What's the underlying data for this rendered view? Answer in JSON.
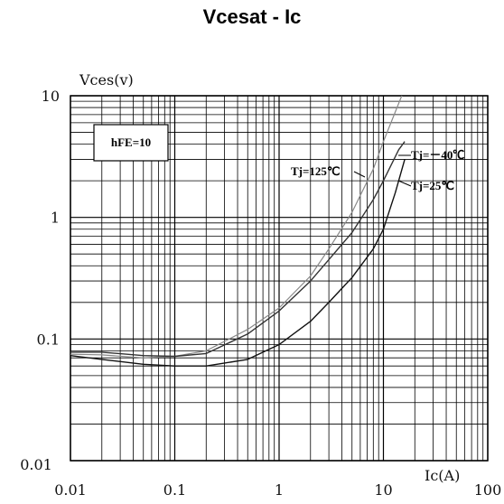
{
  "page": {
    "title": "Vcesat - Ic"
  },
  "chart_data": {
    "type": "line",
    "title": "Vcesat - Ic",
    "xlabel": "Ic(A)",
    "ylabel": "Vces(v)",
    "xscale": "log",
    "yscale": "log",
    "xlim": [
      0.01,
      100
    ],
    "ylim": [
      0.01,
      10
    ],
    "x_ticks": [
      "0.01",
      "0.1",
      "1",
      "10",
      "100"
    ],
    "y_ticks": [
      "0.01",
      "0.1",
      "1",
      "10"
    ],
    "grid": true,
    "annotation": "hFE=10",
    "series": [
      {
        "name": "Tj=125℃",
        "color": "#888888",
        "x": [
          0.01,
          0.02,
          0.05,
          0.1,
          0.2,
          0.5,
          1,
          2,
          3,
          5,
          8,
          10,
          15,
          18
        ],
        "y": [
          0.075,
          0.074,
          0.07,
          0.072,
          0.08,
          0.12,
          0.18,
          0.33,
          0.55,
          1.1,
          2.5,
          4.2,
          10,
          13
        ]
      },
      {
        "name": "Tj=－40℃",
        "color": "#333333",
        "x": [
          0.01,
          0.02,
          0.05,
          0.1,
          0.2,
          0.5,
          1,
          2,
          3,
          5,
          8,
          10,
          14,
          16
        ],
        "y": [
          0.078,
          0.078,
          0.073,
          0.072,
          0.076,
          0.11,
          0.17,
          0.3,
          0.45,
          0.75,
          1.4,
          2.0,
          3.6,
          4.2
        ]
      },
      {
        "name": "Tj=25℃",
        "color": "#111111",
        "x": [
          0.01,
          0.02,
          0.05,
          0.1,
          0.2,
          0.5,
          1,
          2,
          3,
          5,
          8,
          10,
          13,
          16
        ],
        "y": [
          0.073,
          0.068,
          0.062,
          0.06,
          0.06,
          0.068,
          0.09,
          0.14,
          0.2,
          0.32,
          0.55,
          0.8,
          1.6,
          3.0
        ]
      }
    ]
  }
}
